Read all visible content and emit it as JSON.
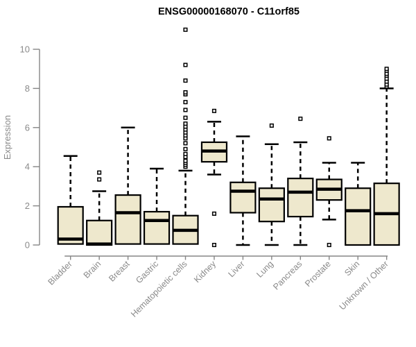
{
  "chart_data": {
    "type": "boxplot",
    "title": "ENSG00000168070 - C11orf85",
    "xlabel": "",
    "ylabel": "Expression",
    "ylim": [
      0,
      11.2
    ],
    "yticks": [
      0,
      2,
      4,
      6,
      8,
      10
    ],
    "grid": false,
    "legend": false,
    "categories": [
      "Bladder",
      "Brain",
      "Breast",
      "Gastric",
      "Hematopoietic cells",
      "Kidney",
      "Liver",
      "Lung",
      "Pancreas",
      "Prostate",
      "Skin",
      "Unknown / Other"
    ],
    "boxes": [
      {
        "category": "Bladder",
        "min": 0,
        "q1": 0.05,
        "median": 0.3,
        "q3": 1.95,
        "max": 4.55,
        "outliers": []
      },
      {
        "category": "Brain",
        "min": 0,
        "q1": 0,
        "median": 0.05,
        "q3": 1.25,
        "max": 2.75,
        "outliers": [
          3.35,
          3.7
        ]
      },
      {
        "category": "Breast",
        "min": 0,
        "q1": 0.05,
        "median": 1.65,
        "q3": 2.55,
        "max": 6.0,
        "outliers": []
      },
      {
        "category": "Gastric",
        "min": 0,
        "q1": 0.05,
        "median": 1.25,
        "q3": 1.7,
        "max": 3.9,
        "outliers": []
      },
      {
        "category": "Hematopoietic cells",
        "min": 0,
        "q1": 0.05,
        "median": 0.75,
        "q3": 1.5,
        "max": 3.8,
        "outliers": [
          4.0,
          4.1,
          4.2,
          4.3,
          4.5,
          4.65,
          4.9,
          5.2,
          5.45,
          5.6,
          5.75,
          5.9,
          6.05,
          6.2,
          6.5,
          6.9,
          7.3,
          7.7,
          7.8,
          8.4,
          9.2,
          11.0
        ]
      },
      {
        "category": "Kidney",
        "min": 3.6,
        "q1": 4.25,
        "median": 4.8,
        "q3": 5.25,
        "max": 6.3,
        "outliers": [
          6.85,
          1.6,
          0
        ]
      },
      {
        "category": "Liver",
        "min": 0,
        "q1": 1.65,
        "median": 2.75,
        "q3": 3.2,
        "max": 5.55,
        "outliers": []
      },
      {
        "category": "Lung",
        "min": 0,
        "q1": 1.2,
        "median": 2.35,
        "q3": 2.9,
        "max": 5.15,
        "outliers": [
          6.1
        ]
      },
      {
        "category": "Pancreas",
        "min": 0,
        "q1": 1.45,
        "median": 2.7,
        "q3": 3.4,
        "max": 5.25,
        "outliers": [
          6.45
        ]
      },
      {
        "category": "Prostate",
        "min": 1.3,
        "q1": 2.3,
        "median": 2.85,
        "q3": 3.35,
        "max": 4.2,
        "outliers": [
          5.45,
          0
        ]
      },
      {
        "category": "Skin",
        "min": 0,
        "q1": 0,
        "median": 1.75,
        "q3": 2.9,
        "max": 4.2,
        "outliers": []
      },
      {
        "category": "Unknown / Other",
        "min": 0,
        "q1": 0,
        "median": 1.6,
        "q3": 3.15,
        "max": 8.0,
        "outliers": [
          8.1,
          8.2,
          8.35,
          8.5,
          8.65,
          8.75,
          8.9,
          9.0
        ]
      }
    ],
    "colors": {
      "box_fill": "#EEE8CD",
      "box_border": "#000000",
      "median": "#000000",
      "whisker": "#000000",
      "outlier_fill": "#ffffff",
      "axis": "#858585",
      "tick_label": "#8a8a8a",
      "title": "#000000",
      "background": "#ffffff"
    }
  }
}
